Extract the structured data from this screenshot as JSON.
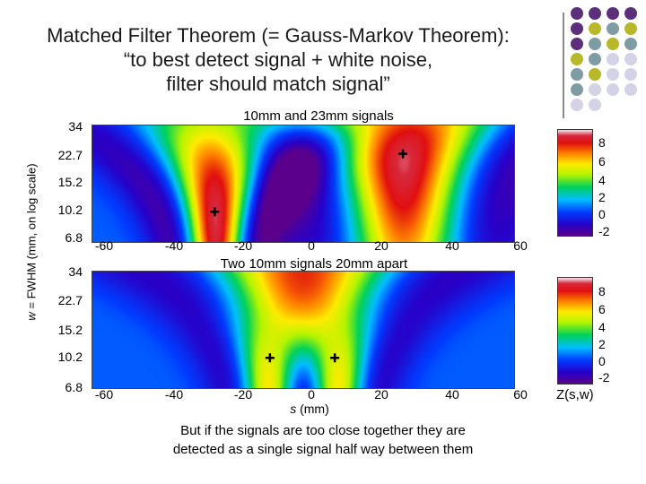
{
  "title_lines": [
    "Matched Filter Theorem (= Gauss-Markov Theorem):",
    "“to best detect signal + white noise,",
    "filter should match signal”"
  ],
  "y_axis_title_var": "w",
  "y_axis_title_rest": " = FWHM (mm, on log scale)",
  "caption_lines": [
    "But if the signals are too close together they are",
    "detected as a single signal half way between them"
  ],
  "colors": {
    "purple": "#5c2f7b",
    "slate": "#7f9ba3",
    "olive": "#b9b82a",
    "lavender": "#d4d2e6"
  },
  "chart_data": [
    {
      "type": "heatmap",
      "title": "10mm and 23mm signals",
      "x_ticks": [
        "-60",
        "-40",
        "-20",
        "0",
        "20",
        "40",
        "60"
      ],
      "y_ticks": [
        "34",
        "22.7",
        "15.2",
        "10.2",
        "6.8"
      ],
      "xlim": [
        -65,
        65
      ],
      "ylim": [
        6.8,
        34
      ],
      "y_scale": "log",
      "markers": [
        {
          "s": -27,
          "w": 10.2
        },
        {
          "s": 31,
          "w": 22.7
        }
      ],
      "colorbar_ticks": [
        "8",
        "6",
        "4",
        "2",
        "0",
        "-2"
      ],
      "colorbar_range": [
        -3,
        9
      ]
    },
    {
      "type": "heatmap",
      "title": "Two 10mm signals 20mm apart",
      "x_ticks": [
        "-60",
        "-40",
        "-20",
        "0",
        "20",
        "40",
        "60"
      ],
      "y_ticks": [
        "34",
        "22.7",
        "15.2",
        "10.2",
        "6.8"
      ],
      "xlim": [
        -65,
        65
      ],
      "ylim": [
        6.8,
        34
      ],
      "y_scale": "log",
      "xlabel_var": "s",
      "xlabel_rest": " (mm)",
      "markers": [
        {
          "s": -10,
          "w": 10.2
        },
        {
          "s": 10,
          "w": 10.2
        }
      ],
      "colorbar_ticks": [
        "8",
        "6",
        "4",
        "2",
        "0",
        "-2"
      ],
      "colorbar_range": [
        -3,
        9
      ],
      "colorbar_label": "Z(s,w)"
    }
  ]
}
